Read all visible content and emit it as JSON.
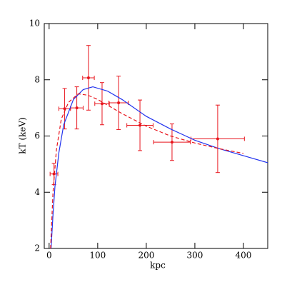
{
  "chart_data": {
    "type": "scatter",
    "xlabel": "kpc",
    "ylabel": "kT (keV)",
    "xlim": [
      -10,
      450
    ],
    "ylim": [
      2,
      10
    ],
    "xticks": [
      0,
      100,
      200,
      300,
      400
    ],
    "yticks": [
      2,
      4,
      6,
      8,
      10
    ],
    "series": [
      {
        "type": "errorbar",
        "color": "#e8141c",
        "x": [
          10,
          32,
          57,
          81,
          109,
          143,
          187,
          253,
          347
        ],
        "values": [
          4.65,
          6.97,
          7.0,
          8.07,
          7.15,
          7.18,
          6.38,
          5.78,
          5.9
        ],
        "xerr": [
          8,
          12,
          13,
          12,
          15,
          20,
          27,
          38,
          55
        ],
        "yerr": [
          0.38,
          0.72,
          0.75,
          1.15,
          0.75,
          0.95,
          0.9,
          0.65,
          1.2
        ]
      },
      {
        "type": "line",
        "color": "#2233ee",
        "dashed": false,
        "x": [
          4,
          8,
          12,
          20,
          30,
          50,
          70,
          90,
          120,
          150,
          200,
          250,
          300,
          350,
          400,
          450
        ],
        "values": [
          2,
          3.2,
          4.2,
          5.4,
          6.4,
          7.3,
          7.65,
          7.75,
          7.6,
          7.3,
          6.7,
          6.25,
          5.85,
          5.55,
          5.3,
          5.05
        ]
      },
      {
        "type": "line",
        "color": "#e8141c",
        "dashed": true,
        "x": [
          3,
          8,
          15,
          25,
          40,
          60,
          80,
          100,
          150,
          200,
          250,
          300,
          350,
          400
        ],
        "values": [
          2,
          4.0,
          5.5,
          6.6,
          7.2,
          7.5,
          7.45,
          7.3,
          6.8,
          6.35,
          6.0,
          5.75,
          5.55,
          5.38
        ]
      }
    ]
  }
}
